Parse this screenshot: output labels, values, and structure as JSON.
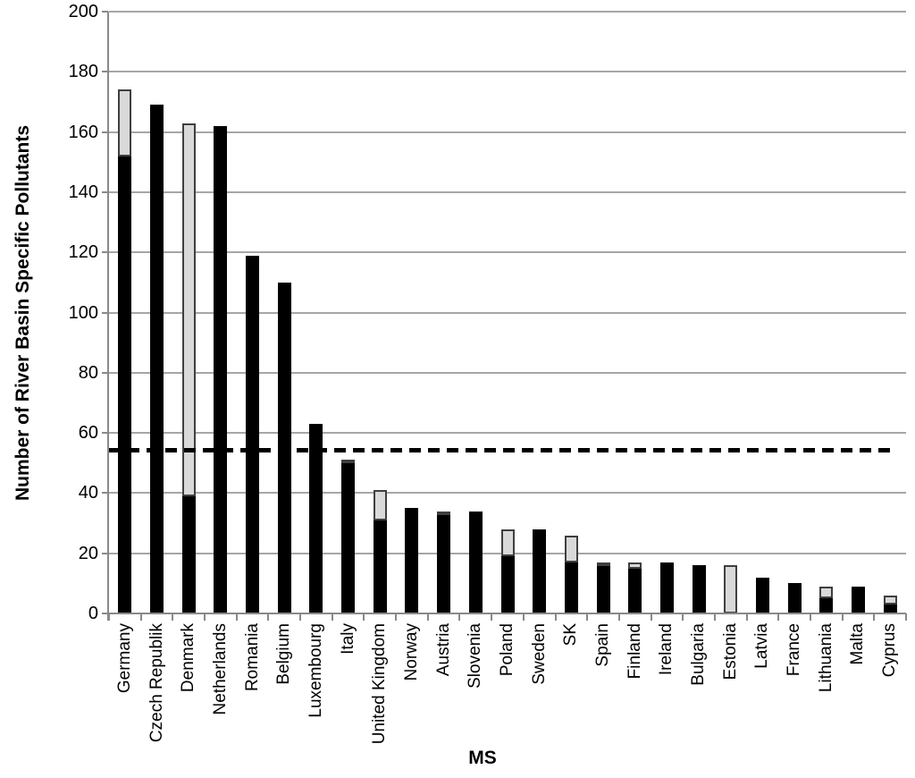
{
  "chart_data": {
    "type": "bar",
    "stacked": true,
    "title": "",
    "xlabel": "MS",
    "ylabel": "Number of River Basin Specific Pollutants",
    "ylim": [
      0,
      200
    ],
    "ytick_step": 20,
    "yticks": [
      0,
      20,
      40,
      60,
      80,
      100,
      120,
      140,
      160,
      180,
      200
    ],
    "grid": "horizontal",
    "legend": "none",
    "categories": [
      "Germany",
      "Czech Republik",
      "Denmark",
      "Netherlands",
      "Romania",
      "Belgium",
      "Luxembourg",
      "Italy",
      "United Kingdom",
      "Norway",
      "Austria",
      "Slovenia",
      "Poland",
      "Sweden",
      "SK",
      "Spain",
      "Finland",
      "Ireland",
      "Bulgaria",
      "Estonia",
      "Latvia",
      "France",
      "Lithuania",
      "Malta",
      "Cyprus"
    ],
    "series": [
      {
        "name": "black-segment",
        "color": "#000000",
        "values": [
          152,
          169,
          39,
          162,
          119,
          110,
          63,
          50,
          31,
          35,
          33,
          34,
          19,
          28,
          17,
          16,
          15,
          17,
          16,
          0,
          12,
          10,
          5,
          9,
          3
        ]
      },
      {
        "name": "grey-segment",
        "color": "#d9d9d9",
        "border_color": "#3f3f3f",
        "values": [
          22,
          0,
          124,
          0,
          0,
          0,
          0,
          1,
          10,
          0,
          1,
          0,
          9,
          0,
          9,
          1,
          2,
          0,
          0,
          16,
          0,
          0,
          4,
          0,
          3
        ]
      }
    ],
    "totals": [
      174,
      169,
      163,
      162,
      119,
      110,
      63,
      51,
      41,
      35,
      34,
      34,
      28,
      28,
      26,
      17,
      17,
      17,
      16,
      16,
      12,
      10,
      9,
      9,
      6
    ],
    "reference_line": {
      "value": 54.5,
      "style": "dashed",
      "color": "#000000"
    }
  },
  "style_colors": {
    "gridline": "#a6a6a6",
    "axis": "#898989",
    "background": "#ffffff"
  }
}
